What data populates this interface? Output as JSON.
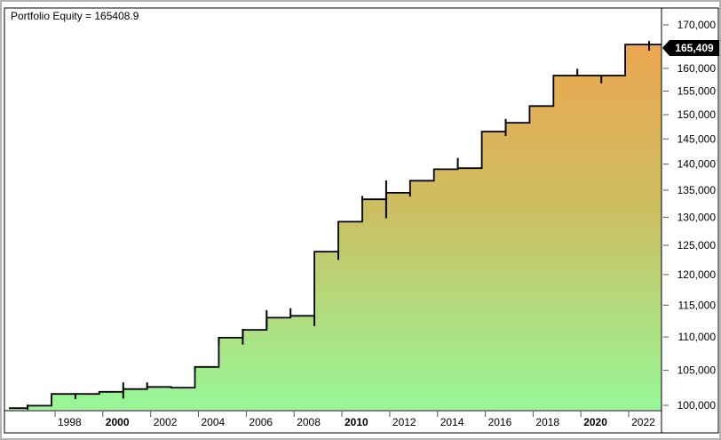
{
  "header": {
    "title": "Portfolio Equity = 165408.9"
  },
  "price_tag": {
    "label": "165,409"
  },
  "colors": {
    "area_top": "#F2A14B",
    "area_mid": "#CDBE62",
    "area_bottom": "#98F798",
    "line": "#000000",
    "frame": "#000000",
    "tick": "#555555",
    "tag_bg": "#000000",
    "tag_text": "#ffffff",
    "outer_border": "#b3b3b3"
  },
  "chart_data": {
    "type": "area",
    "subtype": "stepped-equity-curve",
    "scale": "log",
    "title": "Portfolio Equity = 165408.9",
    "series_name": "Portfolio Equity",
    "final_value": 165408.9,
    "ylim": [
      100000,
      170000
    ],
    "xlim_years": [
      1996,
      2023
    ],
    "grid": "off",
    "legend": "none",
    "y_axis_side": "right",
    "y_ticks": [
      {
        "value": 100000,
        "label": "100,000"
      },
      {
        "value": 105000,
        "label": "105,000"
      },
      {
        "value": 110000,
        "label": "110,000"
      },
      {
        "value": 115000,
        "label": "115,000"
      },
      {
        "value": 120000,
        "label": "120,000"
      },
      {
        "value": 125000,
        "label": "125,000"
      },
      {
        "value": 130000,
        "label": "130,000"
      },
      {
        "value": 135000,
        "label": "135,000"
      },
      {
        "value": 140000,
        "label": "140,000"
      },
      {
        "value": 145000,
        "label": "145,000"
      },
      {
        "value": 150000,
        "label": "150,000"
      },
      {
        "value": 155000,
        "label": "155,000"
      },
      {
        "value": 160000,
        "label": "160,000"
      },
      {
        "value": 165000,
        "label": "165,000",
        "hidden_behind_tag": true
      },
      {
        "value": 170000,
        "label": "170,000"
      }
    ],
    "x_ticks": [
      {
        "year": 1998,
        "label": "1998",
        "bold": false
      },
      {
        "year": 2000,
        "label": "2000",
        "bold": true
      },
      {
        "year": 2002,
        "label": "2002",
        "bold": false
      },
      {
        "year": 2004,
        "label": "2004",
        "bold": false
      },
      {
        "year": 2006,
        "label": "2006",
        "bold": false
      },
      {
        "year": 2008,
        "label": "2008",
        "bold": false
      },
      {
        "year": 2010,
        "label": "2010",
        "bold": true
      },
      {
        "year": 2012,
        "label": "2012",
        "bold": false
      },
      {
        "year": 2014,
        "label": "2014",
        "bold": false
      },
      {
        "year": 2016,
        "label": "2016",
        "bold": false
      },
      {
        "year": 2018,
        "label": "2018",
        "bold": false
      },
      {
        "year": 2020,
        "label": "2020",
        "bold": true
      },
      {
        "year": 2022,
        "label": "2022",
        "bold": false
      }
    ],
    "years": [
      {
        "year": 1996,
        "equity": 99600
      },
      {
        "year": 1997,
        "equity": 99950
      },
      {
        "year": 1998,
        "equity": 101600
      },
      {
        "year": 1999,
        "equity": 101600
      },
      {
        "year": 2000,
        "equity": 101900
      },
      {
        "year": 2001,
        "equity": 102300
      },
      {
        "year": 2002,
        "equity": 102600
      },
      {
        "year": 2003,
        "equity": 102500
      },
      {
        "year": 2004,
        "equity": 105500
      },
      {
        "year": 2005,
        "equity": 109900
      },
      {
        "year": 2006,
        "equity": 111100
      },
      {
        "year": 2007,
        "equity": 113000
      },
      {
        "year": 2008,
        "equity": 113300
      },
      {
        "year": 2009,
        "equity": 123900
      },
      {
        "year": 2010,
        "equity": 129200
      },
      {
        "year": 2011,
        "equity": 133300
      },
      {
        "year": 2012,
        "equity": 134500
      },
      {
        "year": 2013,
        "equity": 136800
      },
      {
        "year": 2014,
        "equity": 139000
      },
      {
        "year": 2015,
        "equity": 139200
      },
      {
        "year": 2016,
        "equity": 146500
      },
      {
        "year": 2017,
        "equity": 148300
      },
      {
        "year": 2018,
        "equity": 151800
      },
      {
        "year": 2019,
        "equity": 158400
      },
      {
        "year": 2020,
        "equity": 158400
      },
      {
        "year": 2021,
        "equity": 158400
      },
      {
        "year": 2022,
        "equity": 165409
      }
    ],
    "whiskers": [
      {
        "year": 1997,
        "low": 99400,
        "high": 100100
      },
      {
        "year": 1999,
        "low": 100900,
        "high": 101600
      },
      {
        "year": 2001,
        "low": 100950,
        "high": 103250
      },
      {
        "year": 2002,
        "low": 102350,
        "high": 103250
      },
      {
        "year": 2004,
        "low": 104800,
        "high": 105500
      },
      {
        "year": 2005,
        "low": 108800,
        "high": 110000
      },
      {
        "year": 2006,
        "low": 108850,
        "high": 111250
      },
      {
        "year": 2007,
        "low": 111200,
        "high": 114200
      },
      {
        "year": 2008,
        "low": 113300,
        "high": 114500
      },
      {
        "year": 2009,
        "low": 111700,
        "high": 113300
      },
      {
        "year": 2010,
        "low": 122500,
        "high": 123900
      },
      {
        "year": 2011,
        "low": 132900,
        "high": 133900
      },
      {
        "year": 2012,
        "low": 129800,
        "high": 136850
      },
      {
        "year": 2013,
        "low": 133800,
        "high": 134500
      },
      {
        "year": 2015,
        "low": 139000,
        "high": 141200
      },
      {
        "year": 2017,
        "low": 145600,
        "high": 149100
      },
      {
        "year": 2020,
        "low": 158400,
        "high": 159900
      },
      {
        "year": 2021,
        "low": 156700,
        "high": 158400
      },
      {
        "year": 2023,
        "low": 164000,
        "high": 166200
      }
    ]
  }
}
